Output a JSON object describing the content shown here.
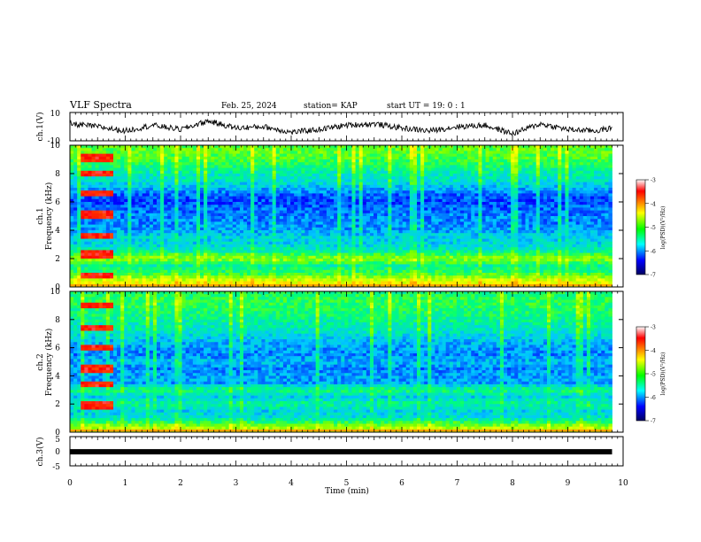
{
  "header": {
    "title": "VLF Spectra",
    "date": "Feb. 25, 2024",
    "station": "station= KAP",
    "start": "start  UT =  19: 0  : 1"
  },
  "colorbar": {
    "label": "log(PSD)(V²/Hz)",
    "ticks": [
      "-3",
      "-4",
      "-5",
      "-6",
      "-7"
    ],
    "colors": [
      "#ffffff",
      "#ff0000",
      "#ffff00",
      "#00ff00",
      "#00ffff",
      "#0000ff",
      "#000080"
    ]
  },
  "chart_data": [
    {
      "type": "line",
      "panel": "ch1-voltage",
      "ylabel": "ch.1(V)",
      "ylim": [
        -10,
        10
      ],
      "yticks": [
        "10",
        "-10"
      ],
      "xlim": [
        0,
        10
      ],
      "series": [
        {
          "x": [
            0,
            0.5,
            1.0,
            1.5,
            2.0,
            2.5,
            3.0,
            3.5,
            4.0,
            4.5,
            5.0,
            5.5,
            6.0,
            6.5,
            7.0,
            7.5,
            8.0,
            8.5,
            9.0,
            9.5,
            9.8
          ],
          "values": [
            2,
            0,
            -3,
            1,
            -2,
            4,
            -1,
            0,
            -4,
            -2,
            1,
            2,
            -1,
            -3,
            0,
            1,
            -5,
            2,
            -2,
            -3,
            -1
          ]
        }
      ]
    },
    {
      "type": "heatmap",
      "panel": "ch1-spectrogram",
      "ylabel": "ch.1\nFrequency (kHz)",
      "yticks": [
        "0",
        "2",
        "4",
        "6",
        "8",
        "10"
      ],
      "ylim": [
        0,
        10
      ],
      "xlim": [
        0,
        9.8
      ],
      "zlim": [
        -7,
        -3
      ],
      "profile_freq_khz": [
        0,
        0.5,
        1,
        1.5,
        2,
        2.5,
        3,
        3.5,
        4,
        4.5,
        5,
        5.5,
        6,
        6.5,
        7,
        7.5,
        8,
        8.5,
        9,
        9.5,
        10
      ],
      "profile_log_psd": [
        -4.2,
        -4.6,
        -5.2,
        -5.4,
        -4.8,
        -5.4,
        -5.7,
        -5.7,
        -5.9,
        -6.0,
        -6.0,
        -6.1,
        -6.2,
        -6.1,
        -5.8,
        -5.6,
        -5.5,
        -5.3,
        -5.1,
        -5.0,
        -5.0
      ],
      "burst": {
        "x_start": 0.2,
        "x_end": 0.8,
        "lines_khz": [
          0.8,
          2.3,
          3.6,
          5.1,
          6.6,
          8.0,
          9.1
        ],
        "log_psd": -3.4
      }
    },
    {
      "type": "heatmap",
      "panel": "ch2-spectrogram",
      "ylabel": "ch.2\nFrequency (kHz)",
      "yticks": [
        "0",
        "2",
        "4",
        "6",
        "8",
        "10"
      ],
      "ylim": [
        0,
        10
      ],
      "xlim": [
        0,
        9.8
      ],
      "zlim": [
        -7,
        -3
      ],
      "profile_freq_khz": [
        0,
        0.5,
        1,
        1.5,
        2,
        2.5,
        3,
        3.5,
        4,
        4.5,
        5,
        5.5,
        6,
        6.5,
        7,
        7.5,
        8,
        8.5,
        9,
        9.5,
        10
      ],
      "profile_log_psd": [
        -4.4,
        -4.9,
        -5.6,
        -5.7,
        -5.4,
        -5.7,
        -5.3,
        -5.9,
        -5.9,
        -6.0,
        -5.8,
        -6.0,
        -5.9,
        -5.8,
        -5.6,
        -5.5,
        -5.4,
        -5.3,
        -5.2,
        -5.2,
        -5.3
      ],
      "burst": {
        "x_start": 0.2,
        "x_end": 0.8,
        "lines_khz": [
          1.9,
          3.4,
          4.5,
          6.0,
          7.4,
          9.0
        ],
        "log_psd": -3.4
      }
    },
    {
      "type": "line",
      "panel": "ch3-voltage",
      "ylabel": "ch.3(V)",
      "ylim": [
        -5,
        5
      ],
      "yticks": [
        "5",
        "0",
        "-5"
      ],
      "xlim": [
        0,
        10
      ],
      "xticks": [
        "0",
        "1",
        "2",
        "3",
        "4",
        "5",
        "6",
        "7",
        "8",
        "9",
        "10"
      ],
      "xlabel": "Time  (min)",
      "series": [
        {
          "x": [
            0,
            9.8
          ],
          "values": [
            -0.2,
            -0.2
          ]
        }
      ]
    }
  ]
}
